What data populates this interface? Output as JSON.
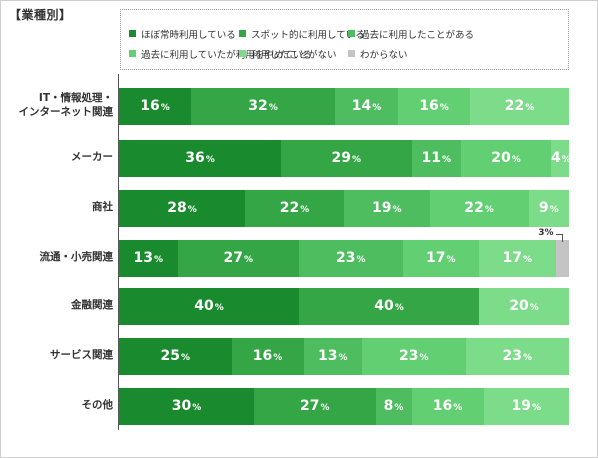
{
  "chart_data": {
    "type": "bar",
    "orientation": "horizontal",
    "stacked": true,
    "title": "【業種別】",
    "categories": [
      [
        "IT・情報処理・",
        "インターネット関連"
      ],
      [
        "メーカー"
      ],
      [
        "商社"
      ],
      [
        "流通・小売関連"
      ],
      [
        "金融関連"
      ],
      [
        "サービス関連"
      ],
      [
        "その他"
      ]
    ],
    "series": [
      {
        "name": "ほぼ常時利用している",
        "color": "#1a8a2e",
        "values": [
          16,
          36,
          28,
          13,
          40,
          25,
          30
        ]
      },
      {
        "name": "スポット的に利用している",
        "color": "#34a645",
        "values": [
          32,
          29,
          22,
          27,
          40,
          16,
          27
        ]
      },
      {
        "name": "過去に利用したことがある",
        "color": "#4dbd5f",
        "values": [
          14,
          11,
          19,
          23,
          0,
          13,
          8
        ]
      },
      {
        "name": "過去に利用していたが利用をやめている",
        "color": "#63cf73",
        "values": [
          16,
          20,
          22,
          17,
          0,
          23,
          16
        ]
      },
      {
        "name": "利用したことがない",
        "color": "#7ddc8a",
        "values": [
          22,
          4,
          9,
          17,
          20,
          23,
          19
        ]
      },
      {
        "name": "わからない",
        "color": "#c4c4c4",
        "values": [
          0,
          0,
          0,
          3,
          0,
          0,
          0
        ]
      }
    ],
    "unit": "%",
    "xlim": [
      0,
      100
    ],
    "legend_position": "top",
    "callouts": [
      {
        "category_index": 3,
        "series_index": 5,
        "text": "3%"
      }
    ]
  }
}
